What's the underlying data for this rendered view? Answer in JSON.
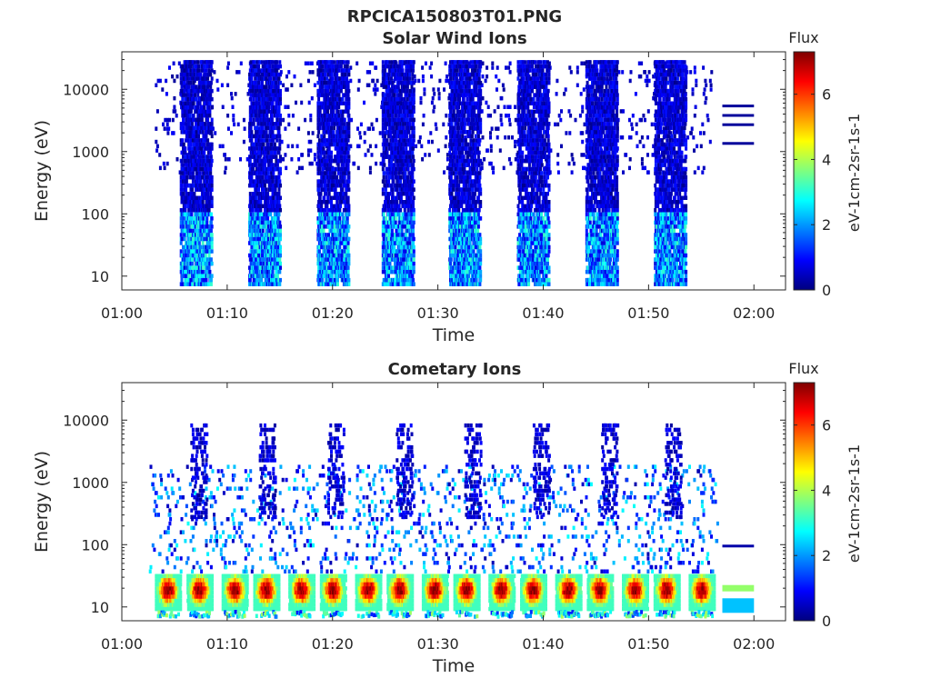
{
  "figure_title": "RPCICA150803T01.PNG",
  "colors": {
    "colormap": [
      "#00007f",
      "#0000ff",
      "#007fff",
      "#00ffff",
      "#7fff7f",
      "#ffff00",
      "#ff7f00",
      "#ff0000",
      "#7f0000"
    ],
    "axes": "#262626",
    "background": "#ffffff"
  },
  "chart_data": [
    {
      "type": "heatmap",
      "title": "Solar Wind Ions",
      "xlabel": "Time",
      "ylabel": "Energy (eV)",
      "y_scale": "log",
      "ylim": [
        6,
        40000
      ],
      "xlim": [
        "01:00",
        "02:03"
      ],
      "x_ticks": [
        "01:00",
        "01:10",
        "01:20",
        "01:30",
        "01:40",
        "01:50",
        "02:00"
      ],
      "y_ticks": [
        "10",
        "100",
        "1000",
        "10000"
      ],
      "colorbar": {
        "title": "Flux",
        "label": "eV-1cm-2sr-1s-1",
        "range": [
          0,
          7.3
        ],
        "ticks": [
          "0",
          "2",
          "4",
          "6"
        ]
      },
      "bursts": [
        {
          "start": "01:05:30",
          "end": "01:08:30",
          "emin": 8,
          "emax": 30000
        },
        {
          "start": "01:12:00",
          "end": "01:15:00",
          "emin": 8,
          "emax": 30000
        },
        {
          "start": "01:18:30",
          "end": "01:21:30",
          "emin": 8,
          "emax": 30000
        },
        {
          "start": "01:24:40",
          "end": "01:27:40",
          "emin": 8,
          "emax": 30000
        },
        {
          "start": "01:31:00",
          "end": "01:34:00",
          "emin": 8,
          "emax": 30000
        },
        {
          "start": "01:37:30",
          "end": "01:40:30",
          "emin": 8,
          "emax": 30000
        },
        {
          "start": "01:44:00",
          "end": "01:47:00",
          "emin": 8,
          "emax": 30000
        },
        {
          "start": "01:50:30",
          "end": "01:53:30",
          "emin": 8,
          "emax": 30000
        }
      ],
      "sparse_range": {
        "start": "01:03:00",
        "end": "01:56:00",
        "emin": 500,
        "emax": 30000
      },
      "trailing_lines": [
        {
          "start": "01:57:00",
          "end": "02:00:00",
          "energy": 5400,
          "flux": 0.2
        },
        {
          "start": "01:57:00",
          "end": "02:00:00",
          "energy": 3800,
          "flux": 0.2
        },
        {
          "start": "01:57:00",
          "end": "02:00:00",
          "energy": 2700,
          "flux": 0.2
        },
        {
          "start": "01:57:00",
          "end": "02:00:00",
          "energy": 1350,
          "flux": 0.2
        }
      ]
    },
    {
      "type": "heatmap",
      "title": "Cometary Ions",
      "xlabel": "Time",
      "ylabel": "Energy (eV)",
      "y_scale": "log",
      "ylim": [
        6,
        40000
      ],
      "xlim": [
        "01:00",
        "02:03"
      ],
      "x_ticks": [
        "01:00",
        "01:10",
        "01:20",
        "01:30",
        "01:40",
        "01:50",
        "02:00"
      ],
      "y_ticks": [
        "10",
        "100",
        "1000",
        "10000"
      ],
      "colorbar": {
        "title": "Flux",
        "label": "eV-1cm-2sr-1s-1",
        "range": [
          0,
          7.3
        ],
        "ticks": [
          "0",
          "2",
          "4",
          "6"
        ]
      },
      "hot_spots": [
        {
          "center": "01:04:20",
          "emin": 10,
          "emax": 35
        },
        {
          "center": "01:07:20",
          "emin": 10,
          "emax": 35
        },
        {
          "center": "01:10:40",
          "emin": 10,
          "emax": 35
        },
        {
          "center": "01:13:40",
          "emin": 10,
          "emax": 35
        },
        {
          "center": "01:17:00",
          "emin": 10,
          "emax": 35
        },
        {
          "center": "01:20:00",
          "emin": 10,
          "emax": 35
        },
        {
          "center": "01:23:20",
          "emin": 10,
          "emax": 35
        },
        {
          "center": "01:26:20",
          "emin": 10,
          "emax": 35
        },
        {
          "center": "01:29:40",
          "emin": 10,
          "emax": 35
        },
        {
          "center": "01:32:40",
          "emin": 10,
          "emax": 35
        },
        {
          "center": "01:36:00",
          "emin": 10,
          "emax": 35
        },
        {
          "center": "01:39:00",
          "emin": 10,
          "emax": 35
        },
        {
          "center": "01:42:20",
          "emin": 10,
          "emax": 35
        },
        {
          "center": "01:45:20",
          "emin": 10,
          "emax": 35
        },
        {
          "center": "01:48:40",
          "emin": 10,
          "emax": 35
        },
        {
          "center": "01:51:40",
          "emin": 10,
          "emax": 35
        },
        {
          "center": "01:55:00",
          "emin": 10,
          "emax": 35
        }
      ],
      "high_energy_bursts": [
        {
          "start": "01:06:30",
          "end": "01:08:00",
          "emin": 300,
          "emax": 10000
        },
        {
          "start": "01:13:00",
          "end": "01:14:30",
          "emin": 300,
          "emax": 10000
        },
        {
          "start": "01:19:30",
          "end": "01:21:00",
          "emin": 300,
          "emax": 10000
        },
        {
          "start": "01:26:00",
          "end": "01:27:30",
          "emin": 300,
          "emax": 10000
        },
        {
          "start": "01:32:30",
          "end": "01:34:00",
          "emin": 300,
          "emax": 10000
        },
        {
          "start": "01:39:00",
          "end": "01:40:30",
          "emin": 300,
          "emax": 10000
        },
        {
          "start": "01:45:30",
          "end": "01:47:00",
          "emin": 300,
          "emax": 10000
        },
        {
          "start": "01:51:30",
          "end": "01:53:00",
          "emin": 300,
          "emax": 10000
        }
      ],
      "sparse_range": {
        "start": "01:02:30",
        "end": "01:56:30",
        "emin": 40,
        "emax": 2000
      },
      "trailing_lines": [
        {
          "start": "01:57:00",
          "end": "02:00:00",
          "energy": 95,
          "flux": 0.3
        },
        {
          "start": "01:57:00",
          "end": "02:00:00",
          "energy": 20,
          "flux": 3.8
        },
        {
          "start": "01:57:00",
          "end": "02:00:00",
          "energy": 10.5,
          "flux": 2.3
        }
      ]
    }
  ]
}
